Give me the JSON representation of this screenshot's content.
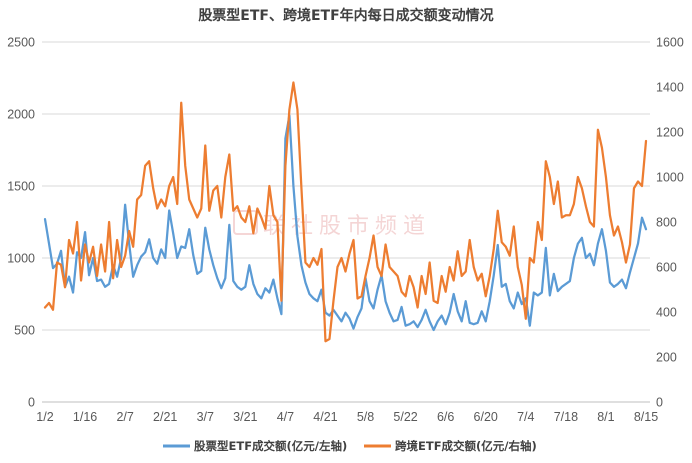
{
  "chart_data": {
    "type": "line",
    "title": "股票型ETF、跨境ETF年内每日成交额变动情况",
    "x_ticks": [
      "1/2",
      "1/16",
      "2/7",
      "2/21",
      "3/7",
      "3/21",
      "4/7",
      "4/21",
      "5/8",
      "5/22",
      "6/6",
      "6/20",
      "7/4",
      "7/18",
      "8/1",
      "8/15"
    ],
    "y_left": {
      "ticks": [
        0,
        500,
        1000,
        1500,
        2000,
        2500
      ],
      "ylim": [
        0,
        2500
      ]
    },
    "y_right": {
      "ticks": [
        0,
        200,
        400,
        600,
        800,
        1000,
        1200,
        1400,
        1600
      ],
      "ylim": [
        0,
        1600
      ]
    },
    "grid": true,
    "legend": "bottom",
    "series": [
      {
        "name": "股票型ETF成交额(亿元/左轴)",
        "axis": "left",
        "color": "#5B9BD5",
        "values": [
          1270,
          1100,
          930,
          960,
          1050,
          800,
          870,
          760,
          1040,
          1000,
          1180,
          880,
          1000,
          840,
          850,
          800,
          820,
          950,
          870,
          1000,
          1370,
          1100,
          870,
          950,
          1010,
          1040,
          1130,
          1000,
          960,
          1060,
          1000,
          1330,
          1170,
          1000,
          1080,
          1070,
          1200,
          1020,
          890,
          910,
          1210,
          1060,
          950,
          860,
          790,
          860,
          1230,
          840,
          800,
          780,
          800,
          950,
          820,
          750,
          720,
          790,
          760,
          850,
          720,
          610,
          1830,
          1990,
          1500,
          1150,
          950,
          830,
          750,
          720,
          700,
          780,
          620,
          600,
          640,
          600,
          560,
          620,
          580,
          510,
          590,
          650,
          860,
          700,
          650,
          780,
          880,
          700,
          620,
          560,
          570,
          660,
          530,
          540,
          560,
          520,
          570,
          640,
          560,
          500,
          560,
          600,
          540,
          620,
          750,
          630,
          560,
          700,
          550,
          540,
          550,
          630,
          560,
          700,
          880,
          1090,
          800,
          820,
          700,
          650,
          760,
          680,
          720,
          530,
          760,
          740,
          760,
          1070,
          740,
          890,
          770,
          800,
          820,
          840,
          1000,
          1100,
          1140,
          1000,
          1030,
          950,
          1100,
          1200,
          1050,
          830,
          800,
          820,
          850,
          790,
          900,
          1000,
          1100,
          1280,
          1200
        ]
      },
      {
        "name": "跨境ETF成交额(亿元/右轴)",
        "axis": "right",
        "color": "#ED7D31",
        "values": [
          420,
          440,
          410,
          620,
          610,
          510,
          720,
          660,
          800,
          540,
          700,
          620,
          690,
          560,
          700,
          580,
          800,
          550,
          720,
          600,
          650,
          760,
          690,
          900,
          920,
          1050,
          1070,
          950,
          860,
          900,
          870,
          960,
          1000,
          880,
          1330,
          1050,
          900,
          860,
          820,
          860,
          1140,
          850,
          940,
          960,
          820,
          1000,
          1100,
          850,
          870,
          820,
          800,
          870,
          750,
          860,
          820,
          770,
          960,
          830,
          800,
          450,
          1050,
          1300,
          1420,
          1300,
          950,
          620,
          600,
          640,
          610,
          680,
          270,
          280,
          450,
          600,
          640,
          580,
          660,
          720,
          460,
          470,
          560,
          640,
          740,
          600,
          560,
          700,
          600,
          580,
          560,
          490,
          470,
          560,
          510,
          420,
          560,
          480,
          620,
          450,
          440,
          560,
          490,
          600,
          540,
          670,
          560,
          580,
          720,
          600,
          540,
          570,
          470,
          560,
          680,
          850,
          710,
          690,
          650,
          780,
          600,
          520,
          370,
          640,
          620,
          800,
          720,
          1070,
          1000,
          880,
          980,
          820,
          830,
          830,
          880,
          1000,
          950,
          870,
          800,
          780,
          1210,
          1130,
          1000,
          830,
          740,
          780,
          710,
          620,
          700,
          950,
          980,
          960,
          1160
        ]
      }
    ]
  },
  "watermark": {
    "text": "联社股市频道",
    "color": "#E8A3A3"
  }
}
